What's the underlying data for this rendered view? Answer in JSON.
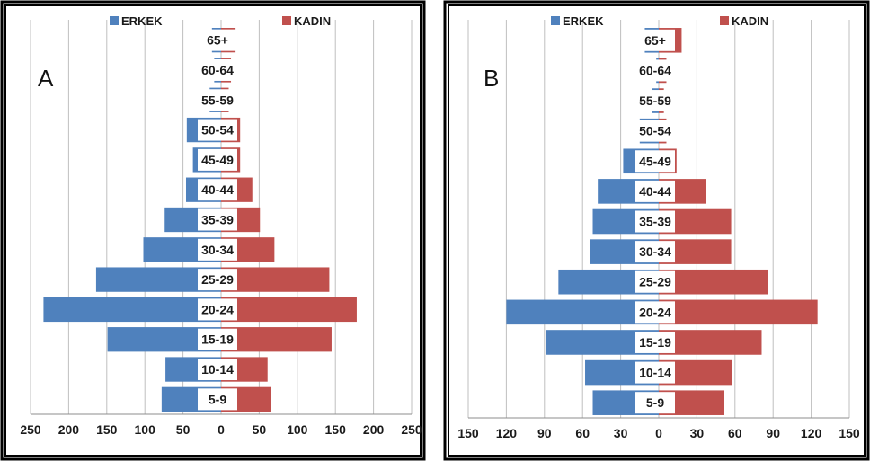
{
  "chart_data": [
    {
      "type": "bar",
      "orientation": "horizontal-population-pyramid",
      "panel_label": "A",
      "categories": [
        "5-9",
        "10-14",
        "15-19",
        "20-24",
        "25-29",
        "30-34",
        "35-39",
        "40-44",
        "45-49",
        "50-54",
        "55-59",
        "60-64",
        "65+"
      ],
      "series": [
        {
          "name": "ERKEK",
          "color": "#4F81BD",
          "values": [
            78,
            73,
            149,
            233,
            164,
            102,
            74,
            46,
            37,
            45,
            15,
            9,
            12
          ]
        },
        {
          "name": "KADIN",
          "color": "#C0504D",
          "values": [
            66,
            61,
            145,
            178,
            142,
            70,
            51,
            41,
            25,
            25,
            10,
            13,
            19
          ]
        }
      ],
      "xlim": [
        -250,
        250
      ],
      "xticks": [
        "250",
        "200",
        "150",
        "100",
        "50",
        "0",
        "50",
        "100",
        "150",
        "200",
        "250"
      ],
      "xtick_values": [
        -250,
        -200,
        -150,
        -100,
        -50,
        0,
        50,
        100,
        150,
        200,
        250
      ],
      "legend": "top",
      "grid": true
    },
    {
      "type": "bar",
      "orientation": "horizontal-population-pyramid",
      "panel_label": "B",
      "categories": [
        "5-9",
        "10-14",
        "15-19",
        "20-24",
        "25-29",
        "30-34",
        "35-39",
        "40-44",
        "45-49",
        "50-54",
        "55-59",
        "60-64",
        "65+"
      ],
      "series": [
        {
          "name": "ERKEK",
          "color": "#4F81BD",
          "values": [
            52,
            58,
            89,
            120,
            79,
            54,
            52,
            48,
            28,
            15,
            5,
            2,
            11
          ]
        },
        {
          "name": "KADIN",
          "color": "#C0504D",
          "values": [
            51,
            58,
            81,
            125,
            86,
            57,
            57,
            37,
            14,
            6,
            4,
            6,
            18
          ]
        }
      ],
      "xlim": [
        -150,
        150
      ],
      "xticks": [
        "150",
        "120",
        "90",
        "60",
        "30",
        "0",
        "30",
        "60",
        "90",
        "120",
        "150"
      ],
      "xtick_values": [
        -150,
        -120,
        -90,
        -60,
        -30,
        0,
        30,
        60,
        90,
        120,
        150
      ],
      "legend": "top",
      "grid": true
    }
  ]
}
